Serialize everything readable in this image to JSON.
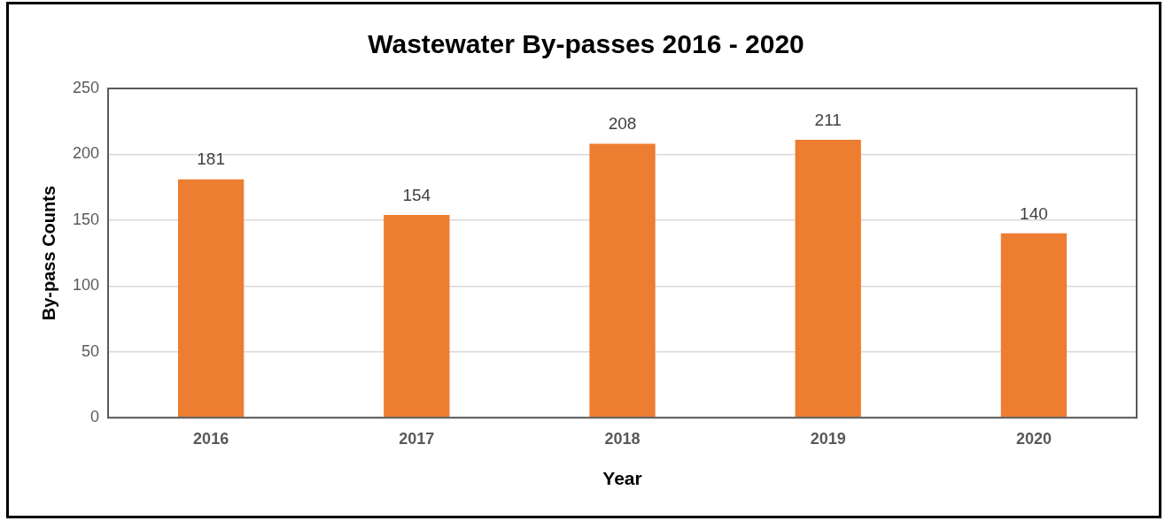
{
  "chart_data": {
    "type": "bar",
    "title": "Wastewater By-passes 2016 - 2020",
    "xlabel": "Year",
    "ylabel": "By-pass Counts",
    "categories": [
      "2016",
      "2017",
      "2018",
      "2019",
      "2020"
    ],
    "values": [
      181,
      154,
      208,
      211,
      140
    ],
    "color": "#ed7d31",
    "ylim": [
      0,
      250
    ],
    "yticks": [
      0,
      50,
      100,
      150,
      200,
      250
    ],
    "grid": "y",
    "data_labels": true,
    "legend": false
  }
}
